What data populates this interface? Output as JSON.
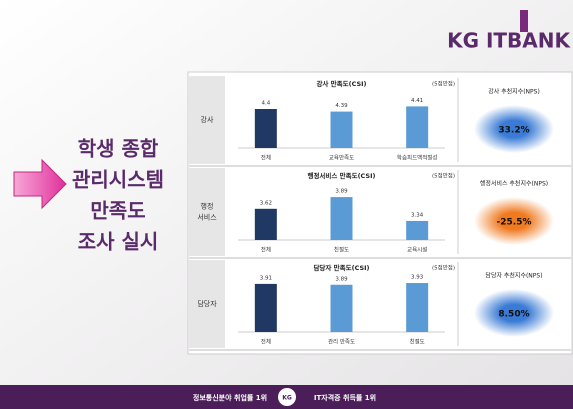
{
  "logo": "KG ITBANK",
  "headline": [
    "학생 종합",
    "관리시스템",
    "만족도",
    "조사 실시"
  ],
  "rows": [
    [
      "강사"
    ],
    [
      "행정",
      "서비스"
    ],
    [
      "담당자"
    ]
  ],
  "nps": [
    {
      "title": "강사 추천지수(NPS)",
      "value": "33.2%",
      "color": "#3a7bd5"
    },
    {
      "title": "행정서비스 추천지수(NPS)",
      "value": "-25.5%",
      "color": "#f07a20"
    },
    {
      "title": "담당자 추천지수(NPS)",
      "value": "8.50%",
      "color": "#3a7bd5"
    }
  ],
  "footer": {
    "left": "정보통신분야 취업률 1위",
    "badge": "KG",
    "right": "IT자격증 취득률 1위"
  },
  "chart_data": [
    {
      "type": "bar",
      "title": "강사 만족도(CSI)",
      "unit": "(5점만점)",
      "categories": [
        "전체",
        "교육만족도",
        "학습피드백적절성"
      ],
      "values": [
        4.4,
        4.39,
        4.41
      ],
      "colors": [
        "#1f3864",
        "#5b9bd5",
        "#5b9bd5"
      ],
      "ylim": [
        4.25,
        4.45
      ]
    },
    {
      "type": "bar",
      "title": "행정서비스 만족도(CSI)",
      "unit": "(5점만점)",
      "categories": [
        "전체",
        "친절도",
        "교육시설"
      ],
      "values": [
        3.62,
        3.89,
        3.34
      ],
      "colors": [
        "#1f3864",
        "#5b9bd5",
        "#5b9bd5"
      ],
      "ylim": [
        2.9,
        4.1
      ]
    },
    {
      "type": "bar",
      "title": "담당자 만족도(CSI)",
      "unit": "(5점만점)",
      "categories": [
        "전체",
        "관리 만족도",
        "친절도"
      ],
      "values": [
        3.91,
        3.89,
        3.93
      ],
      "colors": [
        "#1f3864",
        "#5b9bd5",
        "#5b9bd5"
      ],
      "ylim": [
        2.8,
        4.0
      ]
    }
  ]
}
